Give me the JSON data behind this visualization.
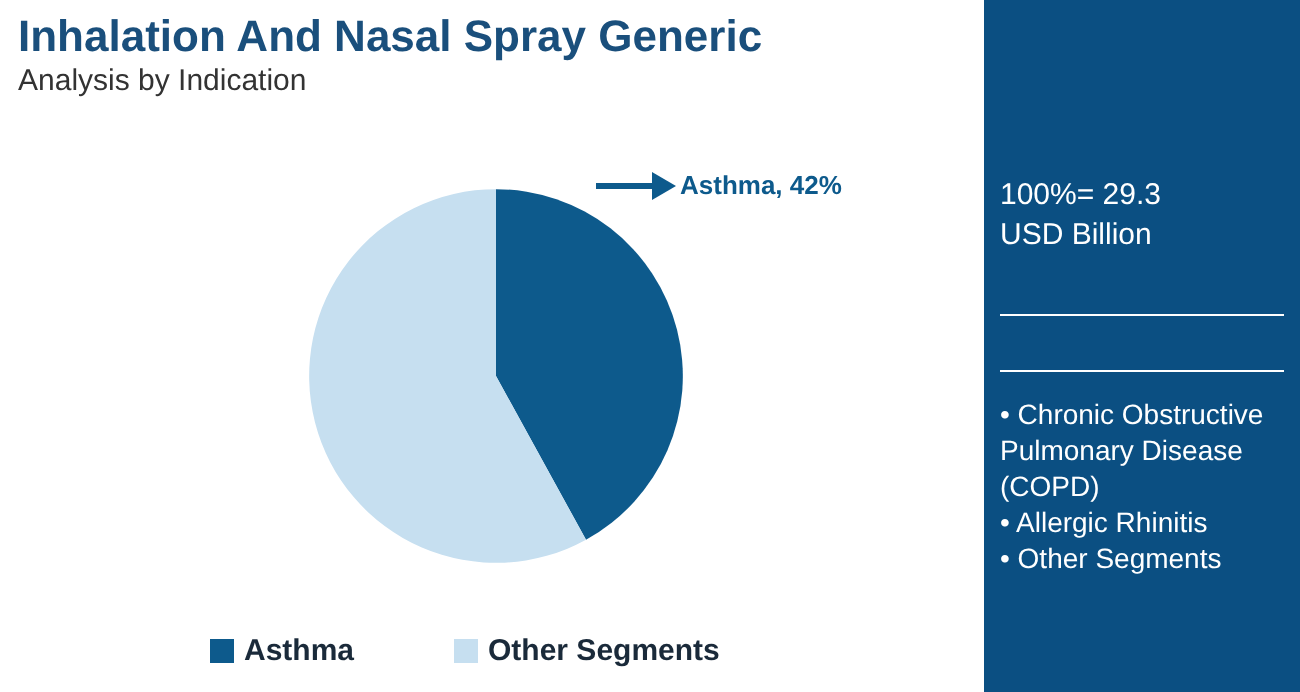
{
  "chart_data": {
    "type": "pie",
    "title": "Inhalation And Nasal Spray Generic",
    "subtitle": "Analysis by Indication",
    "categories": [
      "Asthma",
      "Other Segments"
    ],
    "values": [
      42,
      58
    ],
    "colors": [
      "#0d5a8c",
      "#c6dff0"
    ],
    "value_labels": [
      "Asthma, 42%",
      null
    ],
    "legend": "bottom",
    "annotations": [
      "100%= 29.3 USD Billion",
      "• Chronic Obstructive Pulmonary Disease (COPD)",
      "• Allergic Rhinitis",
      "• Other Segments"
    ]
  }
}
